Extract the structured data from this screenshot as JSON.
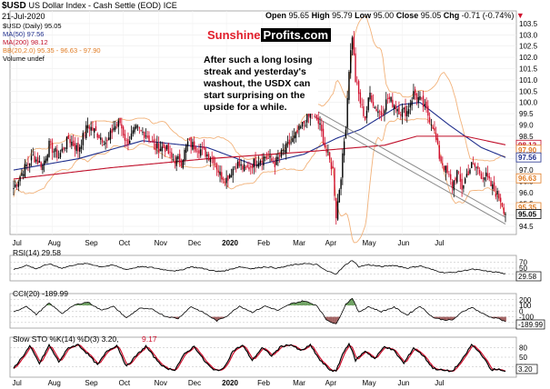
{
  "header": {
    "symbol": "$USD",
    "name": "US Dollar Index - Cash Settle (EOD)",
    "exchange": "ICE",
    "date": "21-Jul-2020",
    "open_label": "Open",
    "open": "95.65",
    "high_label": "High",
    "high": "95.79",
    "low_label": "Low",
    "low": "95.00",
    "close_label": "Close",
    "close": "95.05",
    "chg_label": "Chg",
    "chg": "-0.71 (-0.74%)",
    "down_arrow": "▼"
  },
  "legend": [
    {
      "text": "$USD (Daily) 95.05",
      "color": "#000000"
    },
    {
      "text": "MA(50) 97.56",
      "color": "#1f2e8c"
    },
    {
      "text": "MA(200) 98.12",
      "color": "#c0102b"
    },
    {
      "text": "BB(20,2.0) 95.35 - 96.63 - 97.90",
      "color": "#e07b22"
    },
    {
      "text": "Volume undef",
      "color": "#000000"
    }
  ],
  "brand": {
    "part1": "Sunshine",
    "part2": "Profits.com"
  },
  "annotation": "After such a long losing streak and yesterday's washout, the USDX can start surprising on the upside for a while.",
  "colors": {
    "up": "#000000",
    "down": "#d0102e",
    "ma50": "#1f2e8c",
    "ma200": "#c0102b",
    "bb": "#f2b27a",
    "trend": "#8a8a8a",
    "price_tag": "#d0102e"
  },
  "chart_data": [
    {
      "type": "candlestick",
      "title": "$USD (Daily) 95.05",
      "x_tick_labels": [
        "Jul",
        "Aug",
        "Sep",
        "Oct",
        "Nov",
        "Dec",
        "2020",
        "Feb",
        "Mar",
        "Apr",
        "May",
        "Jun",
        "Jul"
      ],
      "y_tick_labels": [
        "94.5",
        "95.0",
        "95.5",
        "96.0",
        "96.5",
        "97.0",
        "97.5",
        "98.0",
        "98.5",
        "99.0",
        "99.5",
        "100.0",
        "100.5",
        "101.0",
        "101.5",
        "102.0",
        "102.5",
        "103.0",
        "103.5"
      ],
      "ylim": [
        94.3,
        103.9
      ],
      "price_tags": [
        {
          "value": 98.12,
          "label": "98.12",
          "color": "#c0102b"
        },
        {
          "value": 97.9,
          "label": "97.90",
          "color": "#e07b22"
        },
        {
          "value": 97.56,
          "label": "97.56",
          "color": "#1f2e8c"
        },
        {
          "value": 96.63,
          "label": "96.63",
          "color": "#e07b22"
        },
        {
          "value": 95.35,
          "label": "95.35",
          "color": "#e07b22"
        },
        {
          "value": 95.05,
          "label": "95.05",
          "color": "#000000"
        }
      ],
      "close_anchors": [
        [
          0,
          96.2
        ],
        [
          6,
          97.0
        ],
        [
          12,
          97.6
        ],
        [
          18,
          97.2
        ],
        [
          22,
          98.1
        ],
        [
          28,
          97.6
        ],
        [
          34,
          98.4
        ],
        [
          40,
          97.9
        ],
        [
          46,
          99.0
        ],
        [
          52,
          98.6
        ],
        [
          58,
          98.2
        ],
        [
          62,
          98.9
        ],
        [
          66,
          99.1
        ],
        [
          70,
          98.2
        ],
        [
          76,
          98.8
        ],
        [
          82,
          98.6
        ],
        [
          88,
          98.0
        ],
        [
          94,
          98.0
        ],
        [
          98,
          97.5
        ],
        [
          104,
          97.4
        ],
        [
          108,
          98.2
        ],
        [
          114,
          98.0
        ],
        [
          118,
          97.8
        ],
        [
          124,
          97.5
        ],
        [
          128,
          96.8
        ],
        [
          132,
          96.6
        ],
        [
          138,
          97.3
        ],
        [
          144,
          97.0
        ],
        [
          150,
          97.4
        ],
        [
          156,
          97.6
        ],
        [
          162,
          97.3
        ],
        [
          168,
          97.9
        ],
        [
          174,
          98.4
        ],
        [
          180,
          99.1
        ],
        [
          186,
          99.6
        ],
        [
          190,
          98.9
        ],
        [
          194,
          97.8
        ],
        [
          198,
          97.0
        ],
        [
          200,
          95.0
        ],
        [
          203,
          96.8
        ],
        [
          206,
          99.0
        ],
        [
          208,
          101.5
        ],
        [
          210,
          103.0
        ],
        [
          212,
          101.0
        ],
        [
          215,
          100.0
        ],
        [
          218,
          99.3
        ],
        [
          221,
          100.4
        ],
        [
          224,
          99.8
        ],
        [
          228,
          99.5
        ],
        [
          232,
          100.2
        ],
        [
          236,
          99.9
        ],
        [
          240,
          99.6
        ],
        [
          244,
          99.6
        ],
        [
          248,
          100.4
        ],
        [
          252,
          100.1
        ],
        [
          256,
          99.6
        ],
        [
          260,
          99.0
        ],
        [
          264,
          97.6
        ],
        [
          268,
          97.0
        ],
        [
          272,
          96.3
        ],
        [
          275,
          96.9
        ],
        [
          278,
          96.2
        ],
        [
          281,
          96.8
        ],
        [
          284,
          97.2
        ],
        [
          287,
          97.1
        ],
        [
          290,
          96.8
        ],
        [
          293,
          96.7
        ],
        [
          296,
          96.3
        ],
        [
          299,
          96.0
        ],
        [
          302,
          95.7
        ],
        [
          305,
          95.05
        ]
      ],
      "series": [
        {
          "name": "MA(50)",
          "anchors": [
            [
              0,
              97.0
            ],
            [
              40,
              97.5
            ],
            [
              80,
              98.3
            ],
            [
              120,
              98.0
            ],
            [
              150,
              97.2
            ],
            [
              180,
              97.7
            ],
            [
              200,
              98.4
            ],
            [
              215,
              98.8
            ],
            [
              240,
              99.9
            ],
            [
              252,
              100.0
            ],
            [
              270,
              99.0
            ],
            [
              290,
              98.0
            ],
            [
              305,
              97.56
            ]
          ]
        },
        {
          "name": "MA(200)",
          "anchors": [
            [
              0,
              96.6
            ],
            [
              60,
              97.1
            ],
            [
              120,
              97.5
            ],
            [
              180,
              97.8
            ],
            [
              230,
              98.1
            ],
            [
              250,
              98.5
            ],
            [
              280,
              98.5
            ],
            [
              305,
              98.12
            ]
          ]
        }
      ]
    },
    {
      "type": "line",
      "title": "RSI(14) 29.58",
      "name": "RSI(14)",
      "y_tick_labels": [
        "70",
        "50",
        "30"
      ],
      "ylim": [
        15,
        85
      ],
      "last_value": "29.58",
      "anchors": [
        [
          0,
          45
        ],
        [
          8,
          60
        ],
        [
          14,
          48
        ],
        [
          22,
          65
        ],
        [
          30,
          50
        ],
        [
          38,
          62
        ],
        [
          46,
          66
        ],
        [
          54,
          55
        ],
        [
          62,
          60
        ],
        [
          70,
          45
        ],
        [
          78,
          55
        ],
        [
          86,
          52
        ],
        [
          94,
          44
        ],
        [
          102,
          40
        ],
        [
          110,
          55
        ],
        [
          118,
          48
        ],
        [
          126,
          38
        ],
        [
          132,
          42
        ],
        [
          140,
          55
        ],
        [
          148,
          48
        ],
        [
          156,
          55
        ],
        [
          164,
          50
        ],
        [
          172,
          60
        ],
        [
          180,
          66
        ],
        [
          188,
          62
        ],
        [
          194,
          40
        ],
        [
          200,
          30
        ],
        [
          206,
          62
        ],
        [
          210,
          78
        ],
        [
          214,
          55
        ],
        [
          220,
          62
        ],
        [
          228,
          55
        ],
        [
          236,
          60
        ],
        [
          244,
          50
        ],
        [
          252,
          58
        ],
        [
          260,
          44
        ],
        [
          266,
          35
        ],
        [
          272,
          34
        ],
        [
          278,
          40
        ],
        [
          284,
          46
        ],
        [
          290,
          42
        ],
        [
          296,
          37
        ],
        [
          300,
          36
        ],
        [
          305,
          29.58
        ]
      ]
    },
    {
      "type": "line",
      "title": "CCI(20) -189.99",
      "name": "CCI(20)",
      "y_tick_labels": [
        "200",
        "100",
        "0",
        "-100",
        "-200"
      ],
      "ylim": [
        -250,
        260
      ],
      "last_value": "-189.99",
      "anchors": [
        [
          0,
          -20
        ],
        [
          8,
          90
        ],
        [
          14,
          -60
        ],
        [
          22,
          140
        ],
        [
          30,
          -40
        ],
        [
          38,
          110
        ],
        [
          46,
          160
        ],
        [
          54,
          20
        ],
        [
          62,
          80
        ],
        [
          70,
          -120
        ],
        [
          78,
          50
        ],
        [
          86,
          30
        ],
        [
          94,
          -90
        ],
        [
          102,
          -130
        ],
        [
          110,
          80
        ],
        [
          118,
          -30
        ],
        [
          126,
          -170
        ],
        [
          132,
          -90
        ],
        [
          140,
          90
        ],
        [
          148,
          -20
        ],
        [
          156,
          90
        ],
        [
          164,
          10
        ],
        [
          172,
          130
        ],
        [
          180,
          180
        ],
        [
          188,
          100
        ],
        [
          194,
          -150
        ],
        [
          200,
          -230
        ],
        [
          206,
          120
        ],
        [
          210,
          230
        ],
        [
          214,
          -20
        ],
        [
          220,
          80
        ],
        [
          228,
          -10
        ],
        [
          236,
          70
        ],
        [
          244,
          -70
        ],
        [
          252,
          90
        ],
        [
          260,
          -110
        ],
        [
          266,
          -150
        ],
        [
          272,
          -160
        ],
        [
          278,
          -20
        ],
        [
          284,
          70
        ],
        [
          290,
          -30
        ],
        [
          296,
          -110
        ],
        [
          300,
          -120
        ],
        [
          305,
          -189.99
        ]
      ]
    },
    {
      "type": "line",
      "title": "Slow STO %K(14) %D(3) 3.20, 9.17",
      "series_names": [
        "%K(14)",
        "%D(3)"
      ],
      "y_tick_labels": [
        "80",
        "50",
        "20"
      ],
      "ylim": [
        -5,
        105
      ],
      "last_values": {
        "K": "3.20",
        "D": "9.17"
      },
      "k_color": "#000000",
      "d_color": "#d0102e",
      "anchors": [
        [
          0,
          15
        ],
        [
          6,
          55
        ],
        [
          10,
          85
        ],
        [
          16,
          30
        ],
        [
          22,
          88
        ],
        [
          28,
          35
        ],
        [
          34,
          80
        ],
        [
          40,
          90
        ],
        [
          46,
          60
        ],
        [
          52,
          25
        ],
        [
          58,
          70
        ],
        [
          64,
          88
        ],
        [
          70,
          20
        ],
        [
          76,
          55
        ],
        [
          82,
          85
        ],
        [
          88,
          45
        ],
        [
          94,
          15
        ],
        [
          100,
          10
        ],
        [
          106,
          60
        ],
        [
          112,
          85
        ],
        [
          118,
          40
        ],
        [
          124,
          8
        ],
        [
          130,
          12
        ],
        [
          136,
          70
        ],
        [
          142,
          88
        ],
        [
          148,
          40
        ],
        [
          154,
          80
        ],
        [
          160,
          55
        ],
        [
          166,
          85
        ],
        [
          172,
          90
        ],
        [
          178,
          70
        ],
        [
          184,
          88
        ],
        [
          190,
          40
        ],
        [
          196,
          10
        ],
        [
          200,
          5
        ],
        [
          204,
          60
        ],
        [
          208,
          95
        ],
        [
          212,
          40
        ],
        [
          218,
          70
        ],
        [
          224,
          45
        ],
        [
          230,
          85
        ],
        [
          236,
          70
        ],
        [
          242,
          30
        ],
        [
          248,
          80
        ],
        [
          254,
          55
        ],
        [
          260,
          15
        ],
        [
          266,
          8
        ],
        [
          272,
          5
        ],
        [
          278,
          40
        ],
        [
          284,
          90
        ],
        [
          290,
          60
        ],
        [
          296,
          10
        ],
        [
          300,
          12
        ],
        [
          305,
          3.2
        ]
      ]
    }
  ]
}
